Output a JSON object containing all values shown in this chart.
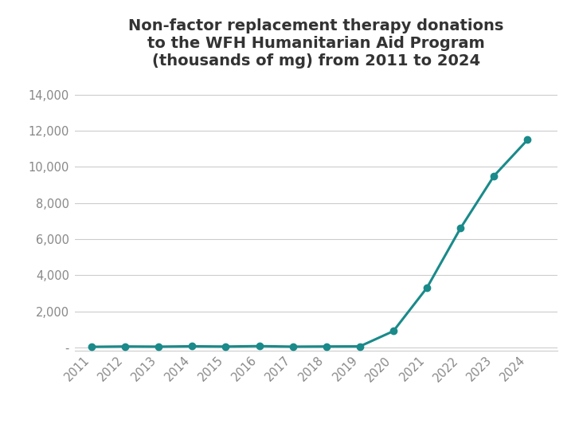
{
  "title": "Non-factor replacement therapy donations\nto the WFH Humanitarian Aid Program\n(thousands of mg) from 2011 to 2024",
  "years": [
    2011,
    2012,
    2013,
    2014,
    2015,
    2016,
    2017,
    2018,
    2019,
    2020,
    2021,
    2022,
    2023,
    2024
  ],
  "values": [
    30,
    50,
    40,
    60,
    45,
    70,
    40,
    50,
    55,
    900,
    3300,
    6600,
    9500,
    11500
  ],
  "line_color": "#1a8a8a",
  "marker_color": "#1a8a8a",
  "background_color": "#ffffff",
  "ylim": [
    -200,
    14500
  ],
  "yticks": [
    0,
    2000,
    4000,
    6000,
    8000,
    10000,
    12000,
    14000
  ],
  "ytick_labels": [
    "-",
    "2,000",
    "4,000",
    "6,000",
    "8,000",
    "10,000",
    "12,000",
    "14,000"
  ],
  "title_fontsize": 14,
  "tick_fontsize": 10.5,
  "marker_size": 6,
  "line_width": 2.2,
  "title_color": "#333333",
  "tick_color": "#888888",
  "grid_color": "#cccccc",
  "xlim_left": 2010.5,
  "xlim_right": 2024.9
}
